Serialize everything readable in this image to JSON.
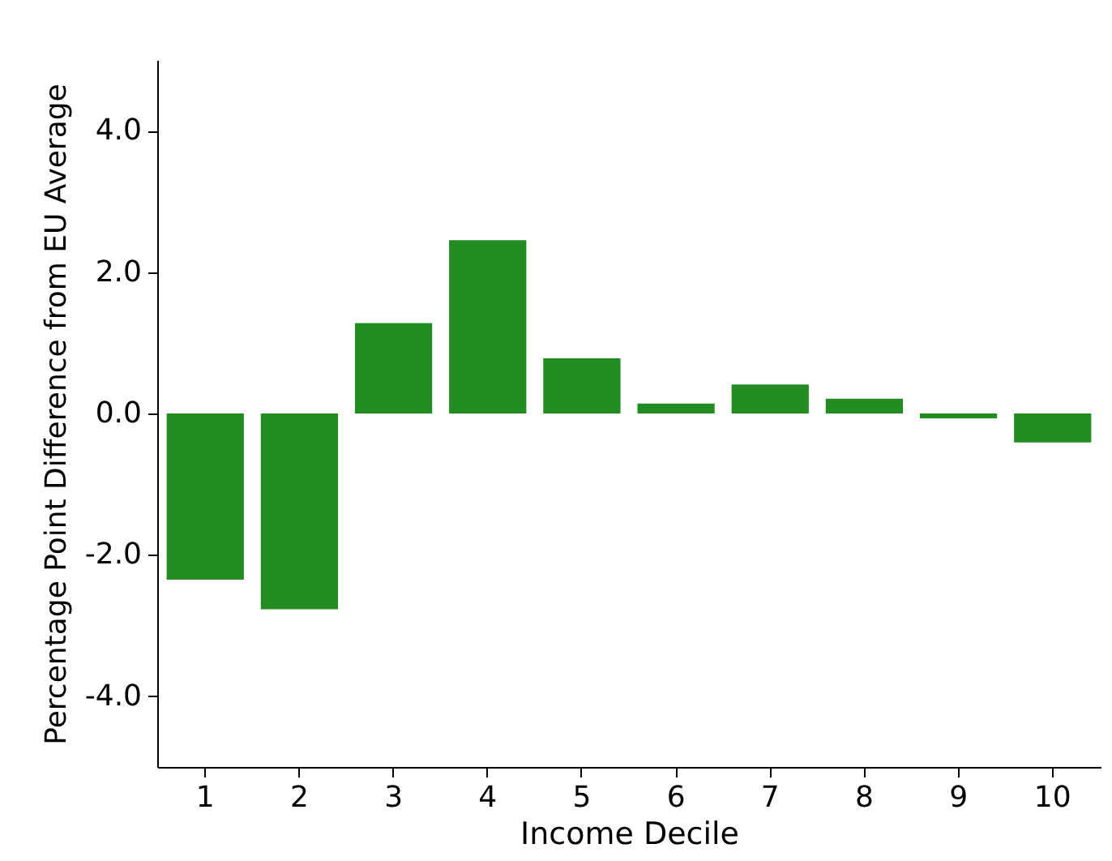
{
  "chart_data": {
    "type": "bar",
    "xlabel": "Income Decile",
    "ylabel": "Percentage Point Difference from EU Average",
    "categories": [
      "1",
      "2",
      "3",
      "4",
      "5",
      "6",
      "7",
      "8",
      "9",
      "10"
    ],
    "values": [
      -2.35,
      -2.77,
      1.28,
      2.45,
      0.78,
      0.14,
      0.41,
      0.21,
      -0.07,
      -0.41
    ],
    "color": "#228b22",
    "ylim": [
      -5,
      5
    ],
    "yticks": [
      {
        "value": -4,
        "label": "-4.0"
      },
      {
        "value": -2,
        "label": "-2.0"
      },
      {
        "value": 0,
        "label": "0.0"
      },
      {
        "value": 2,
        "label": "2.0"
      },
      {
        "value": 4,
        "label": "4.0"
      }
    ],
    "grid": false
  }
}
